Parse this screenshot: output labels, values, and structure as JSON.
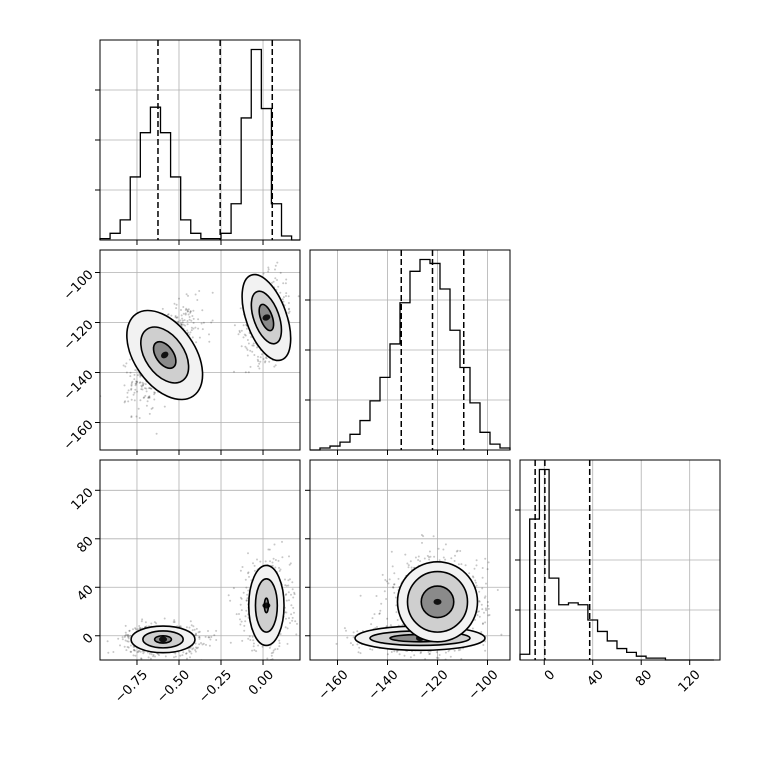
{
  "chart_data": {
    "type": "corner",
    "title": "",
    "parameters": [
      {
        "index": 0,
        "range": [
          -0.97,
          0.22
        ],
        "ticks": [
          -0.75,
          -0.5,
          -0.25,
          0.0
        ],
        "tick_labels": [
          "−0.75",
          "−0.50",
          "−0.25",
          "0.00"
        ]
      },
      {
        "index": 1,
        "range": [
          -171,
          -91
        ],
        "ticks": [
          -160,
          -140,
          -120,
          -100
        ],
        "tick_labels": [
          "−160",
          "−140",
          "−120",
          "−100"
        ]
      },
      {
        "index": 2,
        "range": [
          -20,
          145
        ],
        "ticks": [
          0,
          40,
          80,
          120
        ],
        "tick_labels": [
          "0",
          "40",
          "80",
          "120"
        ]
      }
    ],
    "histograms": [
      {
        "param": 0,
        "bin_edges": [
          -0.97,
          -0.91,
          -0.85,
          -0.79,
          -0.73,
          -0.67,
          -0.61,
          -0.55,
          -0.49,
          -0.43,
          -0.37,
          -0.31,
          -0.25,
          -0.19,
          -0.13,
          -0.07,
          -0.01,
          0.05,
          0.11,
          0.17,
          0.22
        ],
        "counts": [
          1,
          5,
          15,
          47,
          80,
          99,
          80,
          47,
          15,
          5,
          1,
          1,
          5,
          27,
          91,
          142,
          98,
          27,
          3,
          0
        ],
        "quantiles": [
          -0.625,
          -0.255,
          0.055
        ],
        "ylim": [
          0,
          142
        ]
      },
      {
        "param": 1,
        "bin_edges": [
          -171,
          -167,
          -163,
          -159,
          -155,
          -151,
          -147,
          -143,
          -139,
          -135,
          -131,
          -127,
          -123,
          -119,
          -115,
          -111,
          -107,
          -103,
          -99,
          -95,
          -91
        ],
        "counts": [
          0,
          1,
          2,
          4,
          8,
          15,
          25,
          37,
          54,
          75,
          91,
          97,
          95,
          82,
          61,
          42,
          24,
          9,
          3,
          1
        ],
        "quantiles": [
          -134.5,
          -122.0,
          -109.5
        ],
        "ylim": [
          0,
          97
        ]
      },
      {
        "param": 2,
        "bin_edges": [
          -20,
          -12,
          -4,
          4,
          12,
          20,
          28,
          36,
          44,
          52,
          60,
          68,
          76,
          84,
          92,
          100,
          108,
          116,
          124,
          132,
          140
        ],
        "counts": [
          3,
          74,
          100,
          43,
          29,
          30,
          29,
          21,
          15,
          10,
          6,
          4,
          2,
          1,
          1,
          0,
          0,
          0,
          0,
          0
        ],
        "quantiles": [
          -7.5,
          0.5,
          37.5
        ],
        "ylim": [
          0,
          100
        ]
      }
    ],
    "joint_panels": [
      {
        "x_param": 0,
        "y_param": 1,
        "modes": [
          {
            "x": -0.585,
            "y": -133,
            "sx": 0.095,
            "sy": 9.0,
            "rho": 0.55,
            "weight": 0.55,
            "contours": [
              {
                "rx": 0.052,
                "ry": 6.0
              },
              {
                "rx": 0.115,
                "ry": 12.5
              },
              {
                "rx": 0.18,
                "ry": 20.0
              }
            ]
          },
          {
            "x": 0.02,
            "y": -118,
            "sx": 0.06,
            "sy": 8.0,
            "rho": 0.2,
            "weight": 0.45,
            "contours": [
              {
                "rx": 0.035,
                "ry": 5.5
              },
              {
                "rx": 0.075,
                "ry": 11.0
              },
              {
                "rx": 0.12,
                "ry": 18.0
              }
            ]
          }
        ]
      },
      {
        "x_param": 0,
        "y_param": 2,
        "modes": [
          {
            "x": -0.595,
            "y": -3,
            "sx": 0.11,
            "sy": 6.0,
            "rho": 0.0,
            "weight": 0.55,
            "contours": [
              {
                "rx": 0.05,
                "ry": 3.0
              },
              {
                "rx": 0.12,
                "ry": 7.0
              },
              {
                "rx": 0.19,
                "ry": 11.0
              }
            ]
          },
          {
            "x": 0.02,
            "y": 25,
            "sx": 0.07,
            "sy": 18.0,
            "rho": 0.0,
            "weight": 0.45,
            "contours": [
              {
                "rx": 0.012,
                "ry": 6.0
              },
              {
                "rx": 0.065,
                "ry": 22.0
              },
              {
                "rx": 0.105,
                "ry": 33.0
              }
            ]
          }
        ]
      },
      {
        "x_param": 1,
        "y_param": 2,
        "modes": [
          {
            "x": -127,
            "y": -2,
            "sx": 10.0,
            "sy": 5.0,
            "rho": 0.0,
            "weight": 0.55,
            "contours": [
              {
                "rx": 12.0,
                "ry": 3.0
              },
              {
                "rx": 20.0,
                "ry": 6.0
              },
              {
                "rx": 26.0,
                "ry": 10.0
              }
            ]
          },
          {
            "x": -120,
            "y": 28,
            "sx": 10.0,
            "sy": 20.0,
            "rho": 0.0,
            "weight": 0.45,
            "contours": [
              {
                "rx": 6.5,
                "ry": 13.0
              },
              {
                "rx": 12.0,
                "ry": 25.0
              },
              {
                "rx": 16.0,
                "ry": 33.0
              }
            ]
          }
        ]
      }
    ],
    "grid": true
  }
}
